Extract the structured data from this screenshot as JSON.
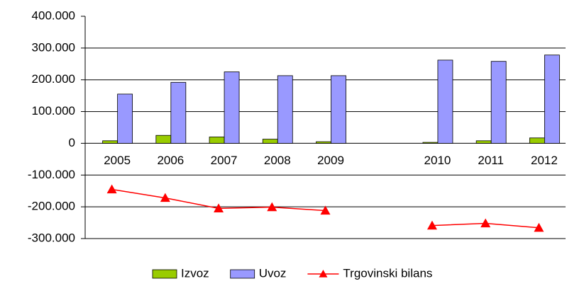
{
  "chart_data": {
    "type": "bar",
    "categories": [
      "2005",
      "2006",
      "2007",
      "2008",
      "2009",
      null,
      "2010",
      "2011",
      "2012"
    ],
    "series": [
      {
        "name": "Izvoz",
        "type": "bar",
        "color": "#99cc00",
        "values": [
          8000,
          25000,
          20000,
          13000,
          5000,
          null,
          3000,
          8000,
          17000
        ]
      },
      {
        "name": "Uvoz",
        "type": "bar",
        "color": "#9999ff",
        "values": [
          155000,
          192000,
          225000,
          213000,
          213000,
          null,
          262000,
          258000,
          278000
        ]
      },
      {
        "name": "Trgovinski bilans",
        "type": "line",
        "color": "#ff0000",
        "values": [
          -145000,
          -172000,
          -205000,
          -201000,
          -212000,
          null,
          -259000,
          -252000,
          -266000
        ]
      }
    ],
    "ylim": [
      -300000,
      400000
    ],
    "yticks": [
      {
        "value": -300000,
        "label": "-300.000"
      },
      {
        "value": -200000,
        "label": "-200.000"
      },
      {
        "value": -100000,
        "label": "-100.000"
      },
      0,
      {
        "value": 100000,
        "label": "100.000"
      },
      {
        "value": 200000,
        "label": "200.000"
      },
      {
        "value": 300000,
        "label": "300.000"
      },
      {
        "value": 400000,
        "label": "400.000"
      }
    ],
    "grid": true,
    "legend": "bottom"
  }
}
